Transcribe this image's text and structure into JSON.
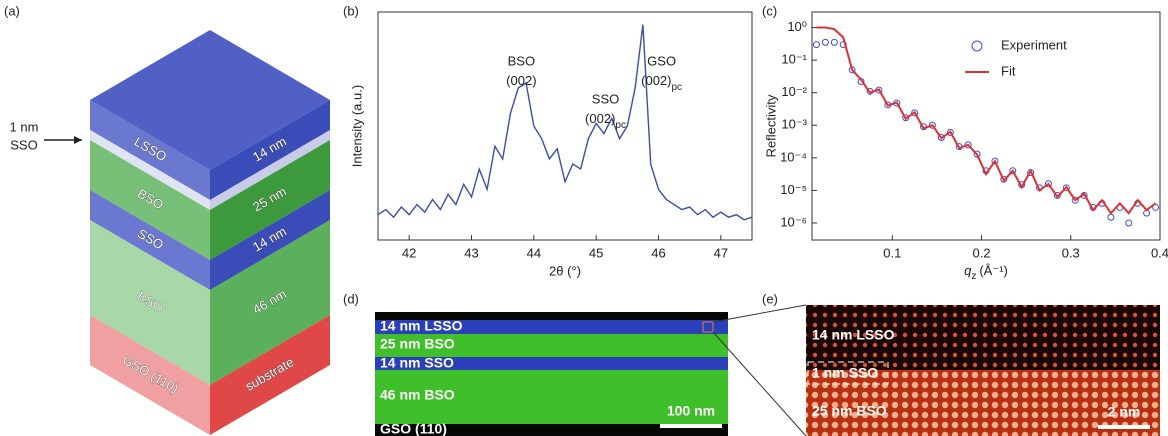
{
  "panel_labels": [
    "(a)",
    "(b)",
    "(c)",
    "(d)",
    "(e)"
  ],
  "diagram": {
    "annotation": [
      "1 nm",
      "SSO"
    ],
    "layers": [
      {
        "material": "LSSO",
        "thickness": "14 nm"
      },
      {
        "material": "BSO",
        "thickness": "25 nm"
      },
      {
        "material": "SSO",
        "thickness": "14 nm"
      },
      {
        "material": "BSO",
        "thickness": "46 nm"
      },
      {
        "material": "GSO (110)",
        "thickness": "substrate"
      }
    ]
  },
  "chart_data": [
    {
      "type": "line",
      "x_label": "2θ (°)",
      "y_label": "Intensity (a.u.)",
      "color": "#3a4fa8",
      "annotations": [
        {
          "name": "BSO",
          "index": "(002)"
        },
        {
          "name": "SSO",
          "index": "(002)",
          "subscript": "pc"
        },
        {
          "name": "GSO",
          "index": "(002)",
          "subscript": "pc"
        }
      ],
      "x": [
        41.5,
        41.625,
        41.75,
        41.875,
        42.0,
        42.125,
        42.25,
        42.375,
        42.5,
        42.625,
        42.75,
        42.875,
        43.0,
        43.125,
        43.25,
        43.375,
        43.5,
        43.625,
        43.75,
        43.875,
        44.0,
        44.125,
        44.25,
        44.375,
        44.5,
        44.625,
        44.75,
        44.875,
        45.0,
        45.125,
        45.25,
        45.375,
        45.5,
        45.625,
        45.75,
        45.875,
        46.0,
        46.125,
        46.25,
        46.375,
        46.5,
        46.625,
        46.75,
        46.875,
        47.0,
        47.125,
        47.25,
        47.375,
        47.5
      ],
      "values": [
        0.2,
        0.22,
        0.19,
        0.23,
        0.2,
        0.24,
        0.21,
        0.26,
        0.22,
        0.28,
        0.24,
        0.32,
        0.27,
        0.38,
        0.3,
        0.47,
        0.42,
        0.6,
        0.7,
        0.72,
        0.55,
        0.5,
        0.42,
        0.46,
        0.33,
        0.4,
        0.38,
        0.5,
        0.56,
        0.52,
        0.58,
        0.5,
        0.55,
        0.7,
        0.95,
        0.4,
        0.3,
        0.26,
        0.24,
        0.22,
        0.23,
        0.2,
        0.22,
        0.19,
        0.21,
        0.19,
        0.2,
        0.18,
        0.19
      ],
      "xlim": [
        41.5,
        47.5
      ],
      "xticks": [
        42,
        43,
        44,
        45,
        46,
        47
      ],
      "ylim": [
        0.1,
        1.0
      ]
    },
    {
      "type": "line",
      "log_y": true,
      "x_label": "q",
      "x_label_sub": "z",
      "x_label_unit": "(Å⁻¹)",
      "y_label": "Reflectivity",
      "legend": "upper right",
      "x": [
        0.015,
        0.025,
        0.035,
        0.045,
        0.055,
        0.065,
        0.075,
        0.085,
        0.095,
        0.105,
        0.115,
        0.125,
        0.135,
        0.145,
        0.155,
        0.165,
        0.175,
        0.185,
        0.195,
        0.205,
        0.215,
        0.225,
        0.235,
        0.245,
        0.255,
        0.265,
        0.275,
        0.285,
        0.295,
        0.305,
        0.315,
        0.325,
        0.335,
        0.345,
        0.355,
        0.365,
        0.375,
        0.385,
        0.395
      ],
      "series": [
        {
          "name": "Experiment",
          "mark": "circle",
          "color": "#3a4fd0",
          "values": [
            0.3,
            0.35,
            0.35,
            0.3,
            0.05,
            0.022,
            0.011,
            0.012,
            0.0042,
            0.0048,
            0.0017,
            0.0024,
            0.0009,
            0.001,
            0.00042,
            0.0006,
            0.00022,
            0.00025,
            0.00013,
            4e-05,
            8e-05,
            2.2e-05,
            4e-05,
            1.5e-05,
            3.5e-05,
            1.2e-05,
            1.6e-05,
            7e-06,
            1.2e-05,
            5e-06,
            7e-06,
            3e-06,
            4e-06,
            1.5e-06,
            3e-06,
            1e-06,
            4e-06,
            2e-06,
            3e-06
          ]
        },
        {
          "name": "Fit",
          "mark": "line",
          "color": "#e03030",
          "values": [
            1,
            1,
            0.89,
            0.5,
            0.05,
            0.025,
            0.01,
            0.0126,
            0.004,
            0.005,
            0.0016,
            0.0025,
            0.0008,
            0.001,
            0.0004,
            0.00063,
            0.0002,
            0.00025,
            0.000126,
            3.16e-05,
            7.94e-05,
            2e-05,
            4e-05,
            1.26e-05,
            4e-05,
            1e-05,
            1.58e-05,
            6.3e-06,
            1.26e-05,
            5e-06,
            7.9e-06,
            2.5e-06,
            5e-06,
            2e-06,
            4e-06,
            2e-06,
            5e-06,
            2.5e-06,
            4e-06
          ]
        }
      ],
      "xlim": [
        0.01,
        0.4
      ],
      "xticks": [
        0.1,
        0.2,
        0.3,
        0.4
      ],
      "ylim": [
        3e-07,
        3
      ],
      "yticks": [
        {
          "value": 1e-06,
          "label": "10⁻⁶"
        },
        {
          "value": 1e-05,
          "label": "10⁻⁵"
        },
        {
          "value": 0.0001,
          "label": "10⁻⁴"
        },
        {
          "value": 0.001,
          "label": "10⁻³"
        },
        {
          "value": 0.01,
          "label": "10⁻²"
        },
        {
          "value": 0.1,
          "label": "10⁻¹"
        },
        {
          "value": 1,
          "label": "10⁰"
        }
      ]
    }
  ],
  "images": {
    "tem": {
      "labels": [
        "14 nm LSSO",
        "25 nm BSO",
        "14 nm SSO",
        "46 nm BSO",
        "GSO (110)"
      ],
      "scale_bar": "100 nm"
    },
    "haadf": {
      "labels": [
        "14 nm LSSO",
        "1 nm SSO",
        "25 nm BSO"
      ],
      "scale_bar": "2 nm"
    }
  }
}
